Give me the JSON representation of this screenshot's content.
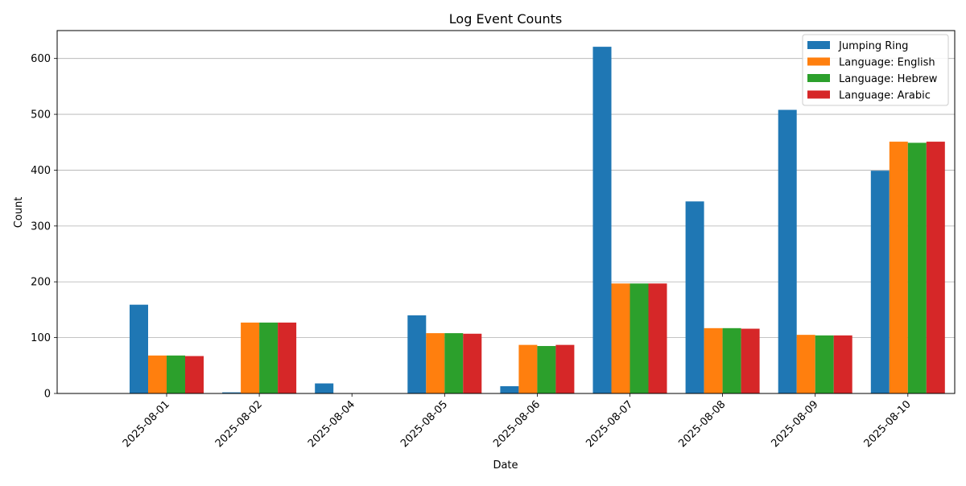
{
  "chart_data": {
    "type": "bar",
    "title": "Log Event Counts",
    "xlabel": "Date",
    "ylabel": "Count",
    "categories": [
      "2025-08-01",
      "2025-08-02",
      "2025-08-04",
      "2025-08-05",
      "2025-08-06",
      "2025-08-07",
      "2025-08-08",
      "2025-08-09",
      "2025-08-10"
    ],
    "ylim": [
      0,
      650
    ],
    "yticks": [
      0,
      100,
      200,
      300,
      400,
      500,
      600
    ],
    "grid": "y",
    "legend_position": "top-right",
    "series": [
      {
        "name": "Jumping Ring",
        "color": "#1f77b4",
        "values": [
          159,
          2,
          18,
          140,
          13,
          621,
          344,
          508,
          399
        ]
      },
      {
        "name": "Language: English",
        "color": "#ff7f0e",
        "values": [
          68,
          127,
          0,
          108,
          87,
          197,
          117,
          105,
          451
        ]
      },
      {
        "name": "Language: Hebrew",
        "color": "#2ca02c",
        "values": [
          68,
          127,
          0,
          108,
          85,
          197,
          117,
          104,
          449
        ]
      },
      {
        "name": "Language: Arabic",
        "color": "#d62728",
        "values": [
          67,
          127,
          0,
          107,
          87,
          197,
          116,
          104,
          451
        ]
      }
    ]
  }
}
